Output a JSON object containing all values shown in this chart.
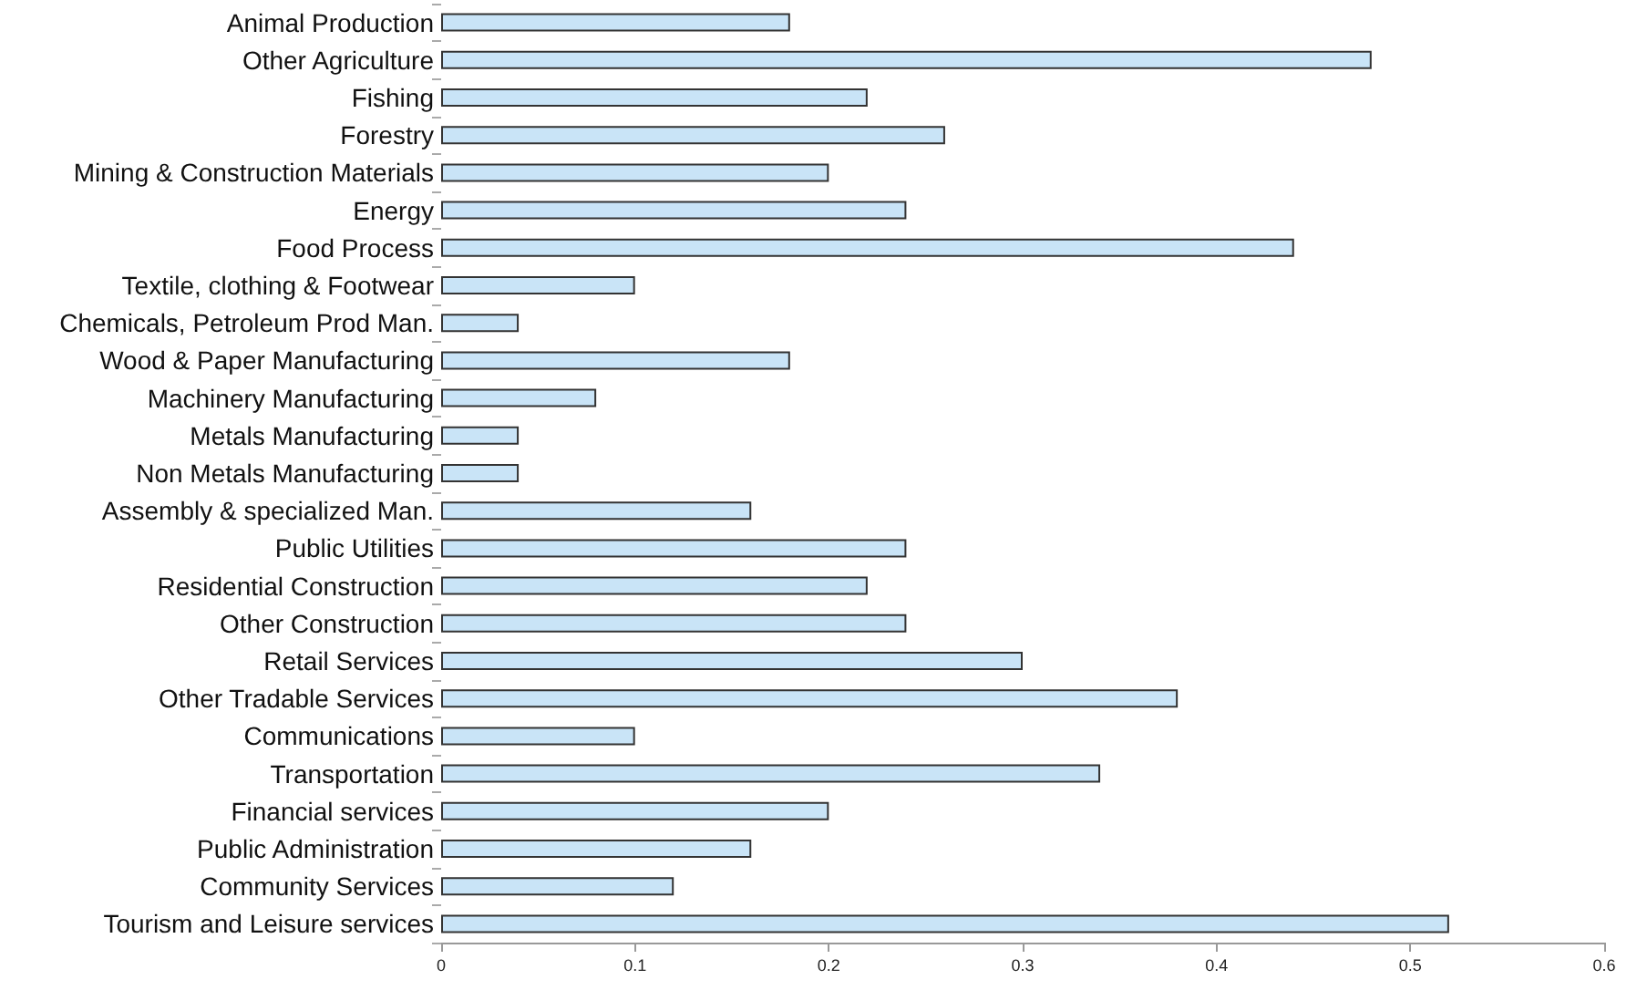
{
  "chart_data": {
    "type": "bar",
    "orientation": "horizontal",
    "categories": [
      "Animal Production",
      "Other Agriculture",
      "Fishing",
      "Forestry",
      "Mining & Construction Materials",
      "Energy",
      "Food Process",
      "Textile, clothing & Footwear",
      "Chemicals, Petroleum Prod Man.",
      "Wood & Paper Manufacturing",
      "Machinery Manufacturing",
      "Metals Manufacturing",
      "Non Metals Manufacturing",
      "Assembly & specialized Man.",
      "Public Utilities",
      "Residential Construction",
      "Other Construction",
      "Retail Services",
      "Other Tradable Services",
      "Communications",
      "Transportation",
      "Financial services",
      "Public Administration",
      "Community Services",
      "Tourism and Leisure services"
    ],
    "values": [
      0.18,
      0.48,
      0.22,
      0.26,
      0.2,
      0.24,
      0.44,
      0.1,
      0.04,
      0.18,
      0.08,
      0.04,
      0.04,
      0.16,
      0.24,
      0.22,
      0.24,
      0.3,
      0.38,
      0.1,
      0.34,
      0.2,
      0.16,
      0.12,
      0.52
    ],
    "color": "#c9e4f7",
    "xlim": [
      0,
      0.6
    ],
    "xticks": [
      0,
      0.1,
      0.2,
      0.3,
      0.4,
      0.5,
      0.6
    ],
    "grid": false
  }
}
